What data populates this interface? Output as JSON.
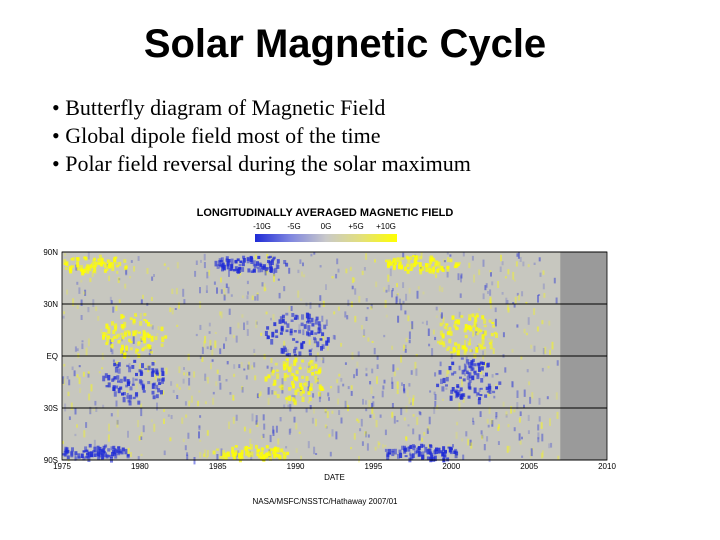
{
  "slide": {
    "title": "Solar Magnetic Cycle",
    "bullets": [
      "• Butterfly diagram of Magnetic Field",
      "• Global dipole field most of the time",
      "• Polar field reversal during the solar maximum"
    ]
  },
  "chart_data": {
    "type": "heatmap",
    "title": "LONGITUDINALLY AVERAGED MAGNETIC FIELD",
    "colorbar": {
      "labels": [
        "-10G",
        "-5G",
        "0G",
        "+5G",
        "+10G"
      ],
      "values": [
        -10,
        -5,
        0,
        5,
        10
      ],
      "colors": [
        "#1f2bd6",
        "#7f86e0",
        "#c9c9c9",
        "#e3e07a",
        "#ffff00"
      ]
    },
    "xlabel": "DATE",
    "ylabel": "",
    "x_ticks": [
      "1975",
      "1980",
      "1985",
      "1990",
      "1995",
      "2000",
      "2005",
      "2010"
    ],
    "x_tick_values": [
      1975,
      1980,
      1985,
      1990,
      1995,
      2000,
      2005,
      2010
    ],
    "xlim": [
      1975,
      2010
    ],
    "y_ticks": [
      "90N",
      "30N",
      "EQ",
      "30S",
      "90S"
    ],
    "y_tick_values": [
      1,
      0.5,
      0,
      -0.5,
      -1
    ],
    "ylim": [
      -1,
      1
    ],
    "y_scale": "sine latitude",
    "grid": true,
    "data_end": 2007,
    "no_data_color": "#9a9a9a",
    "features": [
      {
        "x": 1979.6,
        "y": 0.22,
        "sign": 1
      },
      {
        "x": 1979.6,
        "y": -0.22,
        "sign": -1
      },
      {
        "x": 1990.0,
        "y": 0.22,
        "sign": -1
      },
      {
        "x": 1990.0,
        "y": -0.22,
        "sign": 1
      },
      {
        "x": 2001.0,
        "y": 0.22,
        "sign": 1
      },
      {
        "x": 2001.0,
        "y": -0.22,
        "sign": -1
      },
      {
        "x": 1987.0,
        "y": 0.9,
        "sign": -1
      },
      {
        "x": 1987.0,
        "y": -0.92,
        "sign": 1
      },
      {
        "x": 1998.0,
        "y": 0.9,
        "sign": 1
      },
      {
        "x": 1998.0,
        "y": -0.92,
        "sign": -1
      },
      {
        "x": 1977.0,
        "y": -0.92,
        "sign": -1
      },
      {
        "x": 1977.0,
        "y": 0.9,
        "sign": 1
      }
    ],
    "credit": "NASA/MSFC/NSSTC/Hathaway 2007/01"
  }
}
